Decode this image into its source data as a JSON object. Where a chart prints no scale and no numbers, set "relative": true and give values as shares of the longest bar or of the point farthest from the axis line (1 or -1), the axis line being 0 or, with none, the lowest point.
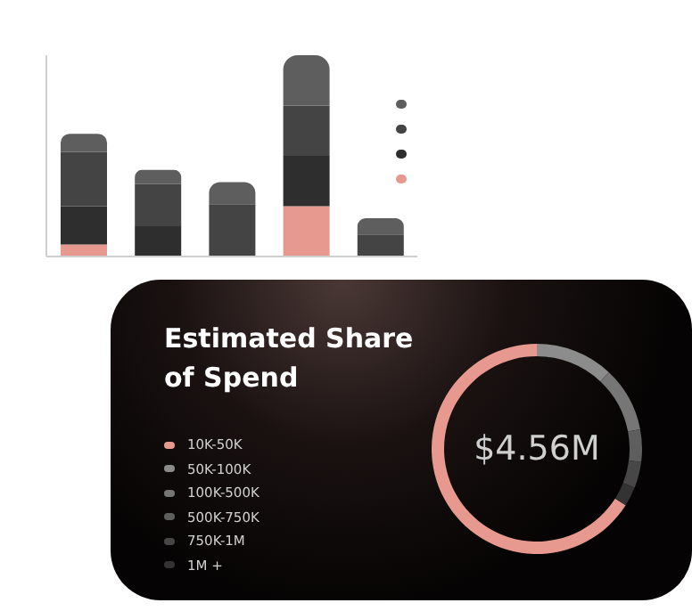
{
  "chart_data": [
    {
      "type": "bar",
      "stacked": true,
      "relative": true,
      "categories": [
        null,
        null,
        null,
        null,
        null
      ],
      "legend": "right",
      "grid": false,
      "series": [
        {
          "color": "#e8998f",
          "values": [
            0.06,
            null,
            null,
            0.25,
            null
          ]
        },
        {
          "color": "#2e2e2e",
          "values": [
            0.19,
            0.15,
            null,
            0.25,
            null
          ]
        },
        {
          "color": "#444444",
          "values": [
            0.27,
            0.21,
            0.26,
            0.25,
            0.11
          ]
        },
        {
          "color": "#5e5e5e",
          "values": [
            0.09,
            0.07,
            0.11,
            0.25,
            0.08
          ]
        }
      ]
    },
    {
      "type": "donut",
      "title": "Estimated Share of Spend",
      "legend": "left",
      "annotations": [
        "$4.56M"
      ],
      "categories": [
        "10K-50K",
        "50K-100K",
        "100K-500K",
        "500K-750K",
        "750K-1M",
        "1M +"
      ],
      "values": [
        66,
        12,
        10,
        5,
        4,
        3
      ],
      "colors": [
        "#e8998f",
        "#8c8c8c",
        "#767676",
        "#5e5e5e",
        "#474747",
        "#333333"
      ]
    }
  ]
}
